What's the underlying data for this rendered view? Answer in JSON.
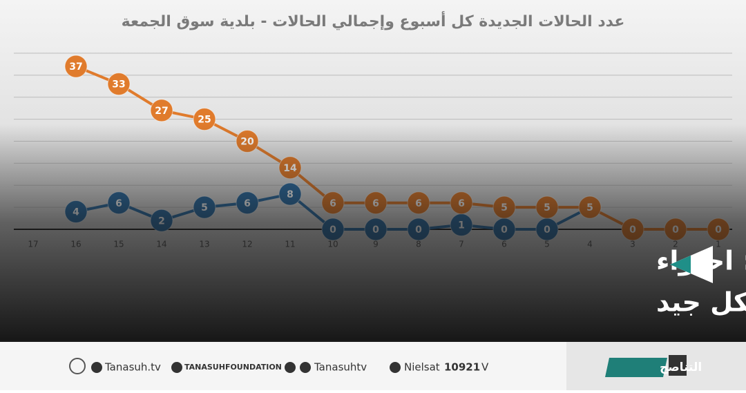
{
  "chart_data": {
    "type": "line",
    "title": "عدد الحالات الجديدة كل أسبوع وإجمالي الحالات - بلدية سوق الجمعة",
    "categories": [
      "17",
      "16",
      "15",
      "14",
      "13",
      "12",
      "11",
      "10",
      "9",
      "8",
      "7",
      "6",
      "5",
      "4",
      "3",
      "2",
      "1"
    ],
    "series": [
      {
        "color": "#e07b2c",
        "values": [
          null,
          37,
          33,
          27,
          25,
          20,
          14,
          6,
          6,
          6,
          6,
          5,
          5,
          5,
          0,
          0,
          0
        ]
      },
      {
        "color": "#2f6fa5",
        "values": [
          null,
          4,
          6,
          2,
          5,
          6,
          8,
          0,
          0,
          0,
          1,
          0,
          0,
          5,
          null,
          null,
          null
        ]
      }
    ],
    "ylim": [
      0,
      40
    ],
    "yticks": [
      0,
      5,
      10,
      15,
      20,
      25,
      30,
      35,
      40
    ],
    "grid": true
  },
  "headline": [
    "غرفة الطوارئ ببلدية سوق الجمعة: احتواء",
    "الحالات المصابة بكورونا يسير بشكل جيد"
  ],
  "footer": {
    "website": "Tanasuh.tv",
    "facebook": "TANASUHFOUNDATION",
    "social": "Tanasuhtv",
    "satellite": "Nielsat",
    "frequency": "10921",
    "polarity": "V",
    "logo": "التناصح"
  }
}
